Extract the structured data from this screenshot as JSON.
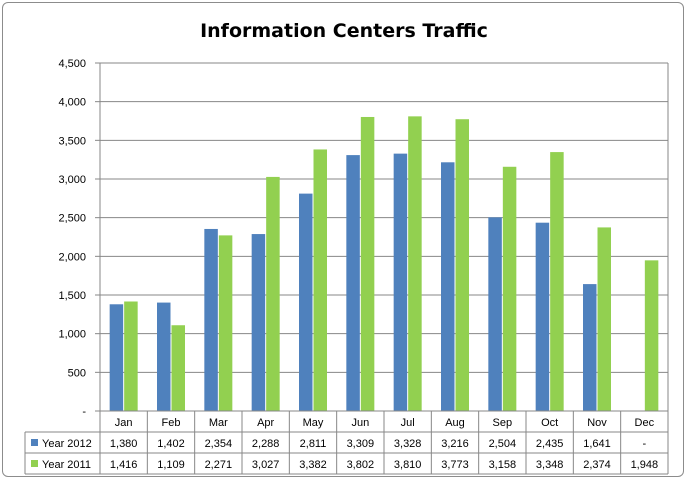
{
  "chart_data": {
    "type": "bar",
    "title": "Information Centers Traffic",
    "categories": [
      "Jan",
      "Feb",
      "Mar",
      "Apr",
      "May",
      "Jun",
      "Jul",
      "Aug",
      "Sep",
      "Oct",
      "Nov",
      "Dec"
    ],
    "series": [
      {
        "name": "Year 2012",
        "color": "#4f81bd",
        "values": [
          1380,
          1402,
          2354,
          2288,
          2811,
          3309,
          3328,
          3216,
          2504,
          2435,
          1641,
          null
        ],
        "labels": [
          "1,380",
          "1,402",
          "2,354",
          "2,288",
          "2,811",
          "3,309",
          "3,328",
          "3,216",
          "2,504",
          "2,435",
          "1,641",
          "-"
        ]
      },
      {
        "name": "Year 2011",
        "color": "#92d050",
        "values": [
          1416,
          1109,
          2271,
          3027,
          3382,
          3802,
          3810,
          3773,
          3158,
          3348,
          2374,
          1948
        ],
        "labels": [
          "1,416",
          "1,109",
          "2,271",
          "3,027",
          "3,382",
          "3,802",
          "3,810",
          "3,773",
          "3,158",
          "3,348",
          "2,374",
          "1,948"
        ]
      }
    ],
    "ylim": [
      0,
      4500
    ],
    "yticks": [
      0,
      500,
      1000,
      1500,
      2000,
      2500,
      3000,
      3500,
      4000,
      4500
    ],
    "ytick_labels": [
      "-",
      "500",
      "1,000",
      "1,500",
      "2,000",
      "2,500",
      "3,000",
      "3,500",
      "4,000",
      "4,500"
    ],
    "grid": true,
    "legend": "data-table"
  }
}
